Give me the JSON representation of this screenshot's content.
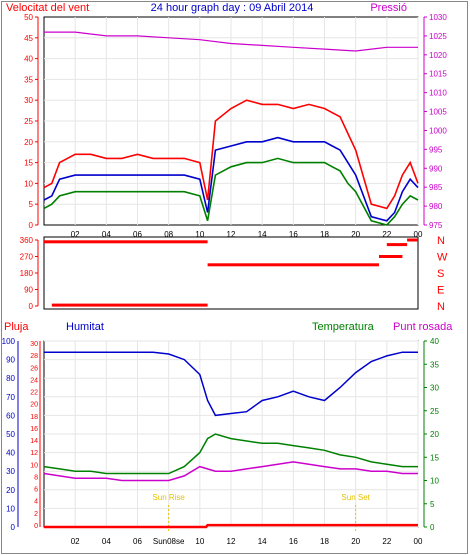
{
  "chart_data": [
    {
      "type": "line",
      "title": "24 hour graph day : 09 Abril 2014",
      "left_label": "Velocitat del vent",
      "right_label": "Pressió",
      "x_ticks": [
        "02",
        "04",
        "06",
        "08",
        "10",
        "12",
        "14",
        "16",
        "18",
        "20",
        "22",
        "00"
      ],
      "left_ticks": [
        "0",
        "5",
        "10",
        "15",
        "20",
        "25",
        "30",
        "35",
        "40",
        "45",
        "50"
      ],
      "right_ticks": [
        "975",
        "980",
        "985",
        "990",
        "995",
        "1000",
        "1005",
        "1010",
        "1015",
        "1020",
        "1025",
        "1030"
      ],
      "ylim_left": [
        0,
        50
      ],
      "ylim_right": [
        975,
        1030
      ],
      "series": [
        {
          "key": "gust",
          "color": "#ff0000",
          "x": [
            0,
            0.5,
            1,
            2,
            3,
            4,
            5,
            6,
            7,
            8,
            9,
            10,
            10.5,
            11,
            12,
            13,
            14,
            15,
            16,
            17,
            18,
            18.5,
            19,
            19.5,
            20,
            21,
            22,
            22.5,
            23,
            23.5,
            24
          ],
          "y": [
            9,
            10,
            15,
            17,
            17,
            16,
            16,
            17,
            16,
            16,
            16,
            15,
            6,
            25,
            28,
            30,
            29,
            29,
            28,
            29,
            28,
            27,
            26,
            22,
            18,
            5,
            4,
            7,
            12,
            15,
            10
          ]
        },
        {
          "key": "avg",
          "color": "#0000cc",
          "x": [
            0,
            0.5,
            1,
            2,
            3,
            4,
            5,
            6,
            7,
            8,
            9,
            10,
            10.5,
            11,
            12,
            13,
            14,
            15,
            16,
            17,
            18,
            18.5,
            19,
            19.5,
            20,
            21,
            22,
            22.5,
            23,
            23.5,
            24
          ],
          "y": [
            6,
            7,
            11,
            12,
            12,
            12,
            12,
            12,
            12,
            12,
            12,
            11,
            3,
            18,
            19,
            20,
            20,
            21,
            20,
            20,
            20,
            19,
            18,
            15,
            12,
            2,
            1,
            3,
            8,
            11,
            9
          ]
        },
        {
          "key": "wind",
          "color": "#008000",
          "x": [
            0,
            0.5,
            1,
            2,
            3,
            4,
            5,
            6,
            7,
            8,
            9,
            10,
            10.5,
            11,
            12,
            13,
            14,
            15,
            16,
            17,
            18,
            18.5,
            19,
            19.5,
            20,
            21,
            22,
            22.5,
            23,
            23.5,
            24
          ],
          "y": [
            4,
            5,
            7,
            8,
            8,
            8,
            8,
            8,
            8,
            8,
            8,
            7,
            1,
            12,
            14,
            15,
            15,
            16,
            15,
            15,
            15,
            14,
            13,
            10,
            8,
            1,
            0,
            2,
            5,
            7,
            6
          ]
        },
        {
          "key": "pressure",
          "color": "#cc00cc",
          "axis": "right",
          "x": [
            0,
            2,
            4,
            6,
            8,
            10,
            12,
            14,
            16,
            18,
            20,
            22,
            24
          ],
          "y": [
            1026,
            1026,
            1025,
            1025,
            1024.5,
            1024,
            1023,
            1022.5,
            1022,
            1021.5,
            1021,
            1022,
            1022
          ]
        }
      ]
    },
    {
      "type": "scatter",
      "ylabels": [
        "N",
        "W",
        "S",
        "E",
        "N"
      ],
      "y_ticks": [
        "0",
        "90",
        "180",
        "270",
        "360"
      ],
      "ylim": [
        0,
        360
      ],
      "color": "#ff0000",
      "points": [
        {
          "x0": 0,
          "x1": 10.5,
          "y": 350
        },
        {
          "x0": 0.5,
          "x1": 10.5,
          "y": 5
        },
        {
          "x0": 10.5,
          "x1": 21.5,
          "y": 225
        },
        {
          "x0": 21.5,
          "x1": 23,
          "y": 270
        },
        {
          "x0": 22,
          "x1": 23.3,
          "y": 335
        },
        {
          "x0": 23.3,
          "x1": 24,
          "y": 360
        }
      ]
    },
    {
      "type": "line",
      "labels": {
        "rain": "Pluja",
        "humidity": "Humitat",
        "temperature": "Temperatura",
        "dew": "Punt rosada"
      },
      "x_ticks": [
        "02",
        "04",
        "06",
        "Sun08se",
        "10",
        "12",
        "14",
        "16",
        "18",
        "20",
        "22",
        "00"
      ],
      "humidity_ticks": [
        "0",
        "10",
        "20",
        "30",
        "40",
        "50",
        "60",
        "70",
        "80",
        "90",
        "100"
      ],
      "rain_ticks": [
        "0",
        "2",
        "4",
        "6",
        "8",
        "10",
        "12",
        "14",
        "16",
        "18",
        "20",
        "22",
        "24",
        "26",
        "28",
        "30"
      ],
      "temp_ticks": [
        "0",
        "5",
        "10",
        "15",
        "20",
        "25",
        "30",
        "35",
        "40"
      ],
      "ylim_humidity": [
        0,
        100
      ],
      "ylim_temp": [
        0,
        40
      ],
      "markers": [
        {
          "x": 8,
          "label": "Sun Rise"
        },
        {
          "x": 20,
          "label": "Sun Set"
        }
      ],
      "series": [
        {
          "key": "humidity",
          "color": "#0000cc",
          "x": [
            0,
            1,
            2,
            3,
            4,
            5,
            6,
            7,
            8,
            9,
            10,
            10.5,
            11,
            12,
            13,
            14,
            15,
            16,
            17,
            18,
            19,
            20,
            21,
            22,
            23,
            24
          ],
          "y": [
            94,
            94,
            94,
            94,
            94,
            94,
            94,
            94,
            93,
            90,
            82,
            68,
            60,
            61,
            62,
            68,
            70,
            73,
            70,
            68,
            75,
            83,
            89,
            92,
            94,
            94
          ]
        },
        {
          "key": "temperature",
          "color": "#008000",
          "axis": "temp",
          "x": [
            0,
            1,
            2,
            3,
            4,
            5,
            6,
            7,
            8,
            9,
            10,
            10.5,
            11,
            12,
            13,
            14,
            15,
            16,
            17,
            18,
            19,
            20,
            21,
            22,
            23,
            24
          ],
          "y": [
            13,
            12.5,
            12,
            12,
            11.5,
            11.5,
            11.5,
            11.5,
            11.5,
            13,
            16,
            19,
            20,
            19,
            18.5,
            18,
            18,
            17.5,
            17,
            16.5,
            15.5,
            15,
            14,
            13.5,
            13,
            13
          ]
        },
        {
          "key": "dew",
          "color": "#cc00cc",
          "axis": "temp",
          "x": [
            0,
            1,
            2,
            3,
            4,
            5,
            6,
            7,
            8,
            9,
            10,
            11,
            12,
            13,
            14,
            15,
            16,
            17,
            18,
            19,
            20,
            21,
            22,
            23,
            24
          ],
          "y": [
            11.5,
            11,
            10.5,
            10.5,
            10.5,
            10,
            10,
            10,
            10,
            11,
            13,
            12,
            12,
            12.5,
            13,
            13.5,
            14,
            13.5,
            13,
            12.5,
            12.5,
            12,
            12,
            11.5,
            11.5
          ]
        },
        {
          "key": "rain",
          "color": "#ff0000",
          "axis": "humidity",
          "x": [
            0,
            10.4,
            10.5,
            24
          ],
          "y": [
            0,
            0,
            1,
            1
          ]
        }
      ]
    }
  ]
}
